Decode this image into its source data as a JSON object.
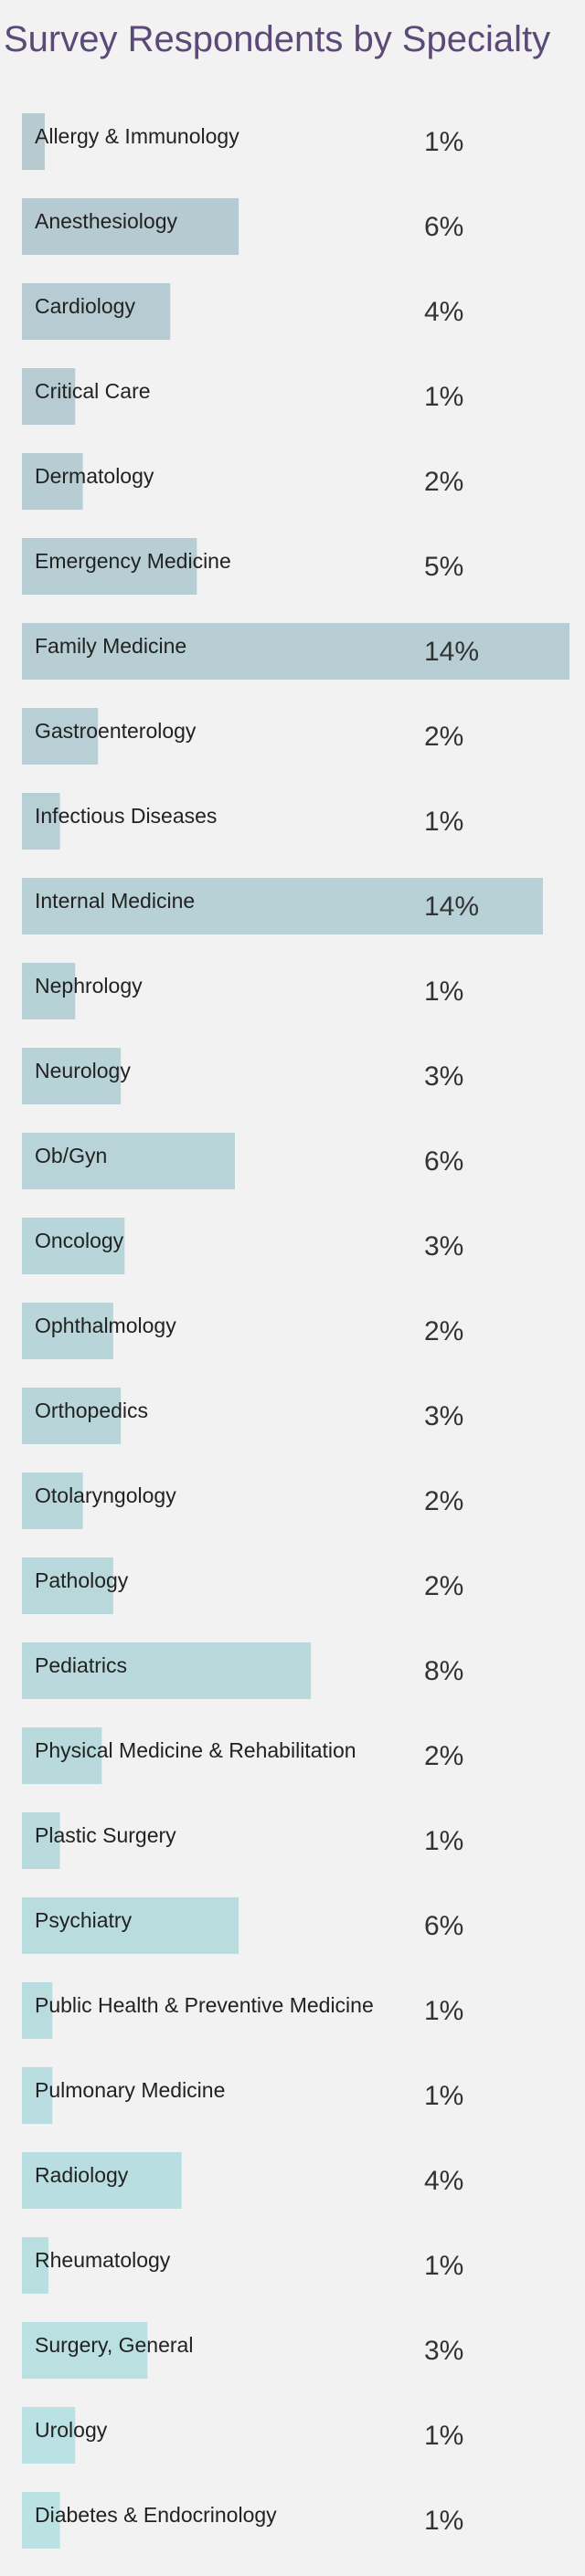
{
  "chart_data": {
    "type": "hbar",
    "title": "Survey Respondents by Specialty",
    "categories": [
      "Allergy & Immunology",
      "Anesthesiology",
      "Cardiology",
      "Critical Care",
      "Dermatology",
      "Emergency Medicine",
      "Family Medicine",
      "Gastroenterology",
      "Infectious Diseases",
      "Internal Medicine",
      "Nephrology",
      "Neurology",
      "Ob/Gyn",
      "Oncology",
      "Ophthalmology",
      "Orthopedics",
      "Otolaryngology",
      "Pathology",
      "Pediatrics",
      "Physical Medicine & Rehabilitation",
      "Plastic Surgery",
      "Psychiatry",
      "Public Health & Preventive Medicine",
      "Pulmonary Medicine",
      "Radiology",
      "Rheumatology",
      "Surgery, General",
      "Urology",
      "Diabetes & Endocrinology"
    ],
    "values": [
      0.6,
      5.7,
      3.9,
      1.4,
      1.6,
      4.6,
      14.4,
      2.0,
      1.0,
      13.7,
      1.4,
      2.6,
      5.6,
      2.7,
      2.4,
      2.6,
      1.6,
      2.4,
      7.6,
      2.1,
      1.0,
      5.7,
      0.8,
      0.8,
      4.2,
      0.7,
      3.3,
      1.4,
      1.0
    ],
    "value_labels": [
      "1%",
      "6%",
      "4%",
      "1%",
      "2%",
      "5%",
      "14%",
      "2%",
      "1%",
      "14%",
      "1%",
      "3%",
      "6%",
      "3%",
      "2%",
      "3%",
      "2%",
      "2%",
      "8%",
      "2%",
      "1%",
      "6%",
      "1%",
      "1%",
      "4%",
      "1%",
      "3%",
      "1%",
      "1%"
    ],
    "colors": [
      "#b6cad0",
      "#b6cbd1",
      "#b6ccd2",
      "#b6ccd2",
      "#b6cdd3",
      "#b6ced4",
      "#b7cfd4",
      "#b7cfd5",
      "#b7d0d5",
      "#b7d1d6",
      "#b7d2d7",
      "#b8d3d7",
      "#b8d4d8",
      "#b8d5d9",
      "#b8d5d9",
      "#b8d6da",
      "#b8d7db",
      "#b9d8dc",
      "#b9d9dc",
      "#b9dadd",
      "#b9dbde",
      "#b9dcdf",
      "#b9dcdf",
      "#b9dde0",
      "#b9dee1",
      "#badfe1",
      "#bae0e2",
      "#bae1e3",
      "#bae2e3"
    ]
  }
}
